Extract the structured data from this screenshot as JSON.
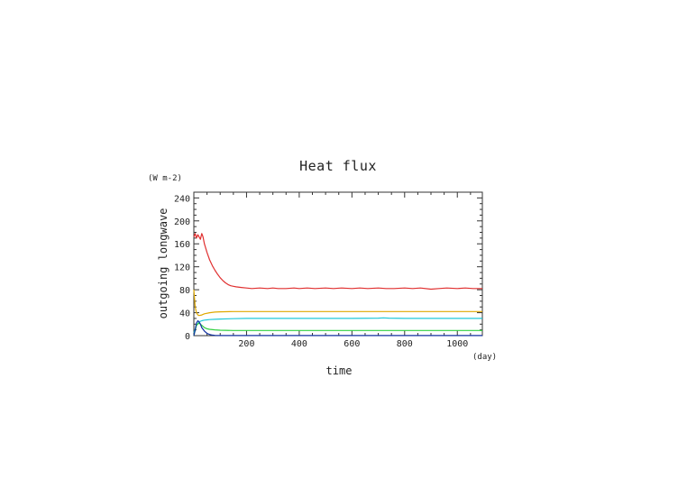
{
  "chart_data": {
    "type": "line",
    "title": "Heat flux",
    "xlabel": "time",
    "ylabel": "outgoing longwave",
    "x_unit": "(day)",
    "y_unit": "(W m-2)",
    "xlim": [
      0,
      1095
    ],
    "ylim": [
      0,
      250
    ],
    "x_ticks": [
      200,
      400,
      600,
      800,
      1000
    ],
    "y_ticks": [
      0,
      40,
      80,
      120,
      160,
      200,
      240
    ],
    "grid": false,
    "legend": "none",
    "series": [
      {
        "color": "#e03030",
        "x": [
          0,
          5,
          10,
          15,
          20,
          25,
          30,
          35,
          40,
          50,
          60,
          70,
          80,
          90,
          100,
          110,
          120,
          130,
          140,
          150,
          160,
          180,
          200,
          220,
          250,
          280,
          300,
          320,
          350,
          380,
          400,
          430,
          460,
          500,
          530,
          560,
          600,
          630,
          660,
          700,
          730,
          760,
          800,
          830,
          860,
          900,
          930,
          960,
          1000,
          1030,
          1060,
          1095
        ],
        "y": [
          172,
          178,
          170,
          176,
          172,
          168,
          178,
          172,
          160,
          145,
          132,
          122,
          114,
          107,
          101,
          96,
          92,
          89,
          87,
          86,
          85,
          84,
          83,
          82,
          83,
          82,
          83,
          82,
          82,
          83,
          82,
          83,
          82,
          83,
          82,
          83,
          82,
          83,
          82,
          83,
          82,
          82,
          83,
          82,
          83,
          81,
          82,
          83,
          82,
          83,
          82,
          82
        ]
      },
      {
        "color": "#e0a800",
        "x": [
          0,
          5,
          10,
          15,
          20,
          30,
          40,
          60,
          80,
          100,
          150,
          200,
          300,
          400,
          500,
          600,
          700,
          800,
          900,
          1000,
          1095
        ],
        "y": [
          80,
          50,
          40,
          36,
          35,
          36,
          38,
          40,
          41,
          41.5,
          42,
          42,
          42,
          42,
          42,
          42,
          42,
          42,
          42,
          42,
          42
        ]
      },
      {
        "color": "#20c8d8",
        "x": [
          0,
          10,
          20,
          30,
          40,
          50,
          60,
          80,
          100,
          150,
          200,
          300,
          400,
          500,
          600,
          700,
          720,
          740,
          800,
          900,
          1000,
          1095
        ],
        "y": [
          5,
          18,
          24,
          26,
          27,
          27.5,
          28,
          28.5,
          29,
          29.5,
          30,
          30,
          30,
          30,
          30,
          30.5,
          31,
          30.5,
          30,
          30,
          30,
          30
        ]
      },
      {
        "color": "#30d040",
        "x": [
          0,
          10,
          20,
          30,
          40,
          50,
          60,
          80,
          100,
          150,
          200,
          300,
          400,
          500,
          600,
          700,
          800,
          900,
          1000,
          1095
        ],
        "y": [
          0,
          18,
          22,
          18,
          14,
          12,
          11,
          10,
          9.5,
          9,
          9,
          9,
          9,
          9,
          9,
          9,
          9,
          9,
          9,
          9
        ]
      },
      {
        "color": "#1030a0",
        "x": [
          0,
          5,
          10,
          15,
          20,
          25,
          30,
          40,
          50,
          60,
          70,
          80,
          90,
          100,
          150,
          200,
          400,
          600,
          800,
          1000,
          1095
        ],
        "y": [
          0,
          10,
          22,
          26,
          24,
          20,
          14,
          8,
          4,
          2,
          1,
          0.5,
          0.3,
          0.2,
          0.2,
          0.2,
          0.2,
          0.2,
          0.2,
          0.2,
          0.2
        ]
      }
    ]
  }
}
